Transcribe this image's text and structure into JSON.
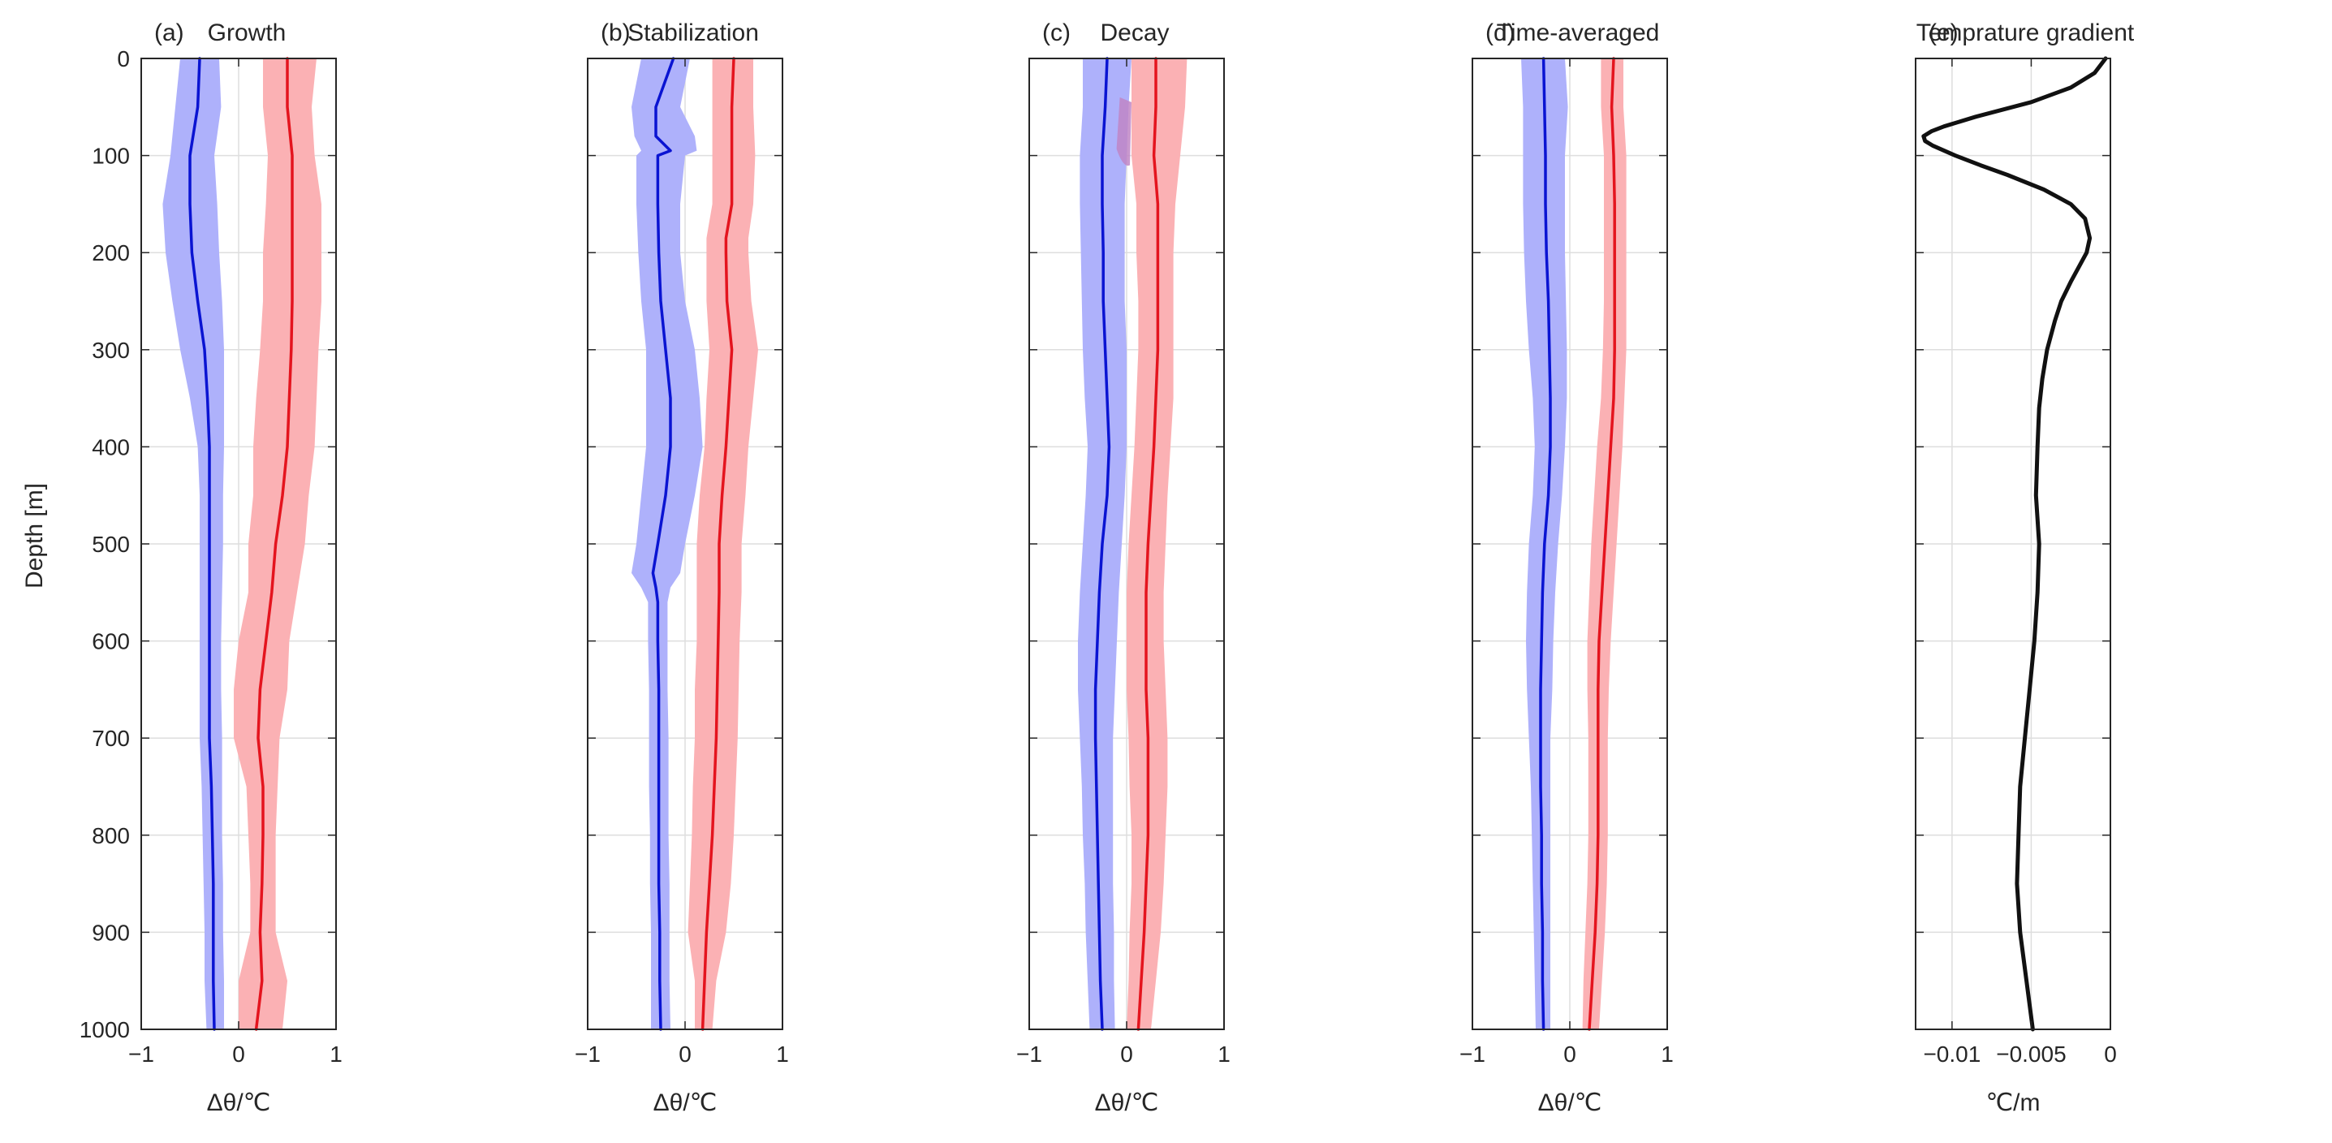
{
  "figure": {
    "shared_ylabel": "Depth [m]",
    "colors": {
      "blue_line": "#0a14d2",
      "blue_fill": "#aeb1fb",
      "red_line": "#e4141e",
      "red_fill": "#fbb1b4",
      "overlap_fill": "#bf86c6",
      "black_line": "#111111",
      "grid": "#dedede",
      "axes": "#262626"
    }
  },
  "chart_data": [
    {
      "type": "line",
      "panel": "(a)",
      "title": "Growth",
      "xlabel": "Δθ/℃",
      "ylabel": "Depth [m]",
      "xlim": [
        -1,
        1
      ],
      "ylim": [
        0,
        1000
      ],
      "y_reversed": true,
      "xticks": [
        -1,
        0,
        1
      ],
      "yticks": [
        0,
        100,
        200,
        300,
        400,
        500,
        600,
        700,
        800,
        900,
        1000
      ],
      "grid": true,
      "series": [
        {
          "name": "blue",
          "color": "blue",
          "depth": [
            0,
            50,
            100,
            150,
            200,
            250,
            300,
            350,
            400,
            450,
            500,
            550,
            600,
            650,
            700,
            750,
            800,
            850,
            900,
            950,
            1000
          ],
          "values": [
            -0.4,
            -0.42,
            -0.5,
            -0.5,
            -0.48,
            -0.42,
            -0.35,
            -0.32,
            -0.3,
            -0.3,
            -0.3,
            -0.3,
            -0.3,
            -0.3,
            -0.3,
            -0.28,
            -0.27,
            -0.26,
            -0.26,
            -0.26,
            -0.25
          ],
          "lower": [
            -0.6,
            -0.65,
            -0.7,
            -0.78,
            -0.75,
            -0.68,
            -0.6,
            -0.5,
            -0.42,
            -0.4,
            -0.4,
            -0.4,
            -0.4,
            -0.4,
            -0.4,
            -0.38,
            -0.37,
            -0.36,
            -0.35,
            -0.35,
            -0.33
          ],
          "upper": [
            -0.2,
            -0.18,
            -0.25,
            -0.22,
            -0.2,
            -0.17,
            -0.15,
            -0.15,
            -0.15,
            -0.16,
            -0.16,
            -0.17,
            -0.18,
            -0.18,
            -0.17,
            -0.17,
            -0.17,
            -0.16,
            -0.16,
            -0.15,
            -0.15
          ]
        },
        {
          "name": "red",
          "color": "red",
          "depth": [
            0,
            50,
            100,
            150,
            200,
            250,
            300,
            350,
            400,
            450,
            500,
            550,
            600,
            650,
            700,
            750,
            800,
            850,
            900,
            950,
            1000
          ],
          "values": [
            0.5,
            0.5,
            0.55,
            0.55,
            0.55,
            0.55,
            0.54,
            0.52,
            0.5,
            0.45,
            0.38,
            0.34,
            0.28,
            0.22,
            0.2,
            0.25,
            0.25,
            0.24,
            0.22,
            0.24,
            0.18
          ],
          "lower": [
            0.25,
            0.25,
            0.3,
            0.28,
            0.25,
            0.25,
            0.22,
            0.18,
            0.15,
            0.15,
            0.1,
            0.1,
            0.0,
            -0.05,
            -0.05,
            0.08,
            0.1,
            0.12,
            0.12,
            0.0,
            0.0
          ],
          "upper": [
            0.8,
            0.75,
            0.78,
            0.85,
            0.85,
            0.85,
            0.82,
            0.8,
            0.78,
            0.72,
            0.68,
            0.6,
            0.52,
            0.5,
            0.42,
            0.4,
            0.38,
            0.38,
            0.38,
            0.5,
            0.45
          ]
        }
      ]
    },
    {
      "type": "line",
      "panel": "(b)",
      "title": "Stabilization",
      "xlabel": "Δθ/℃",
      "xlim": [
        -1,
        1
      ],
      "ylim": [
        0,
        1000
      ],
      "y_reversed": true,
      "xticks": [
        -1,
        0,
        1
      ],
      "grid": true,
      "series": [
        {
          "name": "blue",
          "color": "blue",
          "depth": [
            0,
            50,
            80,
            95,
            100,
            150,
            200,
            250,
            300,
            350,
            400,
            450,
            500,
            530,
            545,
            560,
            600,
            650,
            700,
            750,
            800,
            850,
            900,
            950,
            1000
          ],
          "values": [
            -0.12,
            -0.3,
            -0.3,
            -0.15,
            -0.28,
            -0.28,
            -0.27,
            -0.25,
            -0.2,
            -0.15,
            -0.15,
            -0.2,
            -0.28,
            -0.33,
            -0.3,
            -0.28,
            -0.28,
            -0.27,
            -0.27,
            -0.27,
            -0.27,
            -0.27,
            -0.26,
            -0.26,
            -0.25
          ],
          "lower": [
            -0.45,
            -0.55,
            -0.52,
            -0.45,
            -0.5,
            -0.5,
            -0.48,
            -0.45,
            -0.4,
            -0.4,
            -0.4,
            -0.45,
            -0.5,
            -0.55,
            -0.45,
            -0.38,
            -0.38,
            -0.37,
            -0.37,
            -0.37,
            -0.36,
            -0.36,
            -0.35,
            -0.35,
            -0.35
          ],
          "upper": [
            0.05,
            -0.05,
            0.1,
            0.12,
            0.0,
            -0.05,
            -0.05,
            0.0,
            0.1,
            0.15,
            0.18,
            0.1,
            0.0,
            -0.05,
            -0.15,
            -0.18,
            -0.18,
            -0.18,
            -0.17,
            -0.17,
            -0.17,
            -0.16,
            -0.16,
            -0.16,
            -0.15
          ]
        },
        {
          "name": "red",
          "color": "red",
          "depth": [
            0,
            50,
            100,
            150,
            185,
            200,
            250,
            300,
            350,
            400,
            450,
            500,
            550,
            600,
            650,
            700,
            750,
            800,
            850,
            900,
            950,
            1000
          ],
          "values": [
            0.5,
            0.48,
            0.48,
            0.48,
            0.42,
            0.42,
            0.43,
            0.48,
            0.45,
            0.42,
            0.38,
            0.35,
            0.35,
            0.34,
            0.33,
            0.32,
            0.3,
            0.28,
            0.25,
            0.22,
            0.2,
            0.18
          ],
          "lower": [
            0.28,
            0.28,
            0.28,
            0.28,
            0.22,
            0.22,
            0.22,
            0.25,
            0.22,
            0.2,
            0.15,
            0.12,
            0.12,
            0.12,
            0.1,
            0.1,
            0.08,
            0.07,
            0.05,
            0.03,
            0.1,
            0.1
          ],
          "upper": [
            0.7,
            0.7,
            0.72,
            0.7,
            0.65,
            0.65,
            0.68,
            0.75,
            0.7,
            0.65,
            0.62,
            0.58,
            0.58,
            0.56,
            0.55,
            0.54,
            0.52,
            0.5,
            0.47,
            0.42,
            0.32,
            0.28
          ]
        }
      ]
    },
    {
      "type": "line",
      "panel": "(c)",
      "title": "Decay",
      "xlabel": "Δθ/℃",
      "xlim": [
        -1,
        1
      ],
      "ylim": [
        0,
        1000
      ],
      "y_reversed": true,
      "xticks": [
        -1,
        0,
        1
      ],
      "grid": true,
      "overlap_region": {
        "depth": [
          40,
          110
        ],
        "x": [
          -0.12,
          0.05
        ]
      },
      "series": [
        {
          "name": "blue",
          "color": "blue",
          "depth": [
            0,
            50,
            100,
            150,
            200,
            250,
            300,
            350,
            400,
            450,
            500,
            550,
            600,
            650,
            700,
            750,
            800,
            850,
            900,
            950,
            1000
          ],
          "values": [
            -0.2,
            -0.22,
            -0.25,
            -0.25,
            -0.24,
            -0.24,
            -0.22,
            -0.2,
            -0.18,
            -0.2,
            -0.25,
            -0.28,
            -0.3,
            -0.32,
            -0.32,
            -0.31,
            -0.3,
            -0.29,
            -0.28,
            -0.27,
            -0.25
          ],
          "lower": [
            -0.45,
            -0.45,
            -0.48,
            -0.48,
            -0.47,
            -0.46,
            -0.45,
            -0.43,
            -0.4,
            -0.42,
            -0.45,
            -0.48,
            -0.5,
            -0.5,
            -0.48,
            -0.46,
            -0.45,
            -0.43,
            -0.42,
            -0.4,
            -0.38
          ],
          "upper": [
            0.05,
            0.02,
            0.0,
            -0.02,
            -0.02,
            -0.02,
            0.0,
            0.0,
            0.0,
            -0.02,
            -0.05,
            -0.08,
            -0.1,
            -0.12,
            -0.14,
            -0.14,
            -0.14,
            -0.14,
            -0.13,
            -0.13,
            -0.12
          ]
        },
        {
          "name": "red",
          "color": "red",
          "depth": [
            0,
            50,
            100,
            150,
            200,
            250,
            300,
            350,
            400,
            450,
            500,
            550,
            600,
            650,
            700,
            750,
            800,
            850,
            900,
            950,
            1000
          ],
          "values": [
            0.3,
            0.3,
            0.28,
            0.32,
            0.32,
            0.32,
            0.32,
            0.3,
            0.28,
            0.25,
            0.22,
            0.2,
            0.2,
            0.2,
            0.22,
            0.22,
            0.22,
            0.2,
            0.18,
            0.15,
            0.12
          ],
          "lower": [
            0.05,
            0.05,
            0.05,
            0.1,
            0.1,
            0.12,
            0.12,
            0.1,
            0.08,
            0.05,
            0.02,
            0.0,
            0.0,
            0.0,
            0.02,
            0.03,
            0.05,
            0.05,
            0.03,
            0.02,
            0.0
          ],
          "upper": [
            0.62,
            0.6,
            0.55,
            0.5,
            0.48,
            0.48,
            0.48,
            0.48,
            0.45,
            0.42,
            0.4,
            0.38,
            0.38,
            0.4,
            0.42,
            0.42,
            0.4,
            0.38,
            0.35,
            0.3,
            0.25
          ]
        }
      ]
    },
    {
      "type": "line",
      "panel": "(d)",
      "title": "Time-averaged",
      "xlabel": "Δθ/℃",
      "xlim": [
        -1,
        1
      ],
      "ylim": [
        0,
        1000
      ],
      "y_reversed": true,
      "xticks": [
        -1,
        0,
        1
      ],
      "grid": true,
      "series": [
        {
          "name": "blue",
          "color": "blue",
          "depth": [
            0,
            50,
            100,
            150,
            200,
            250,
            300,
            350,
            400,
            450,
            500,
            550,
            600,
            650,
            700,
            750,
            800,
            850,
            900,
            950,
            1000
          ],
          "values": [
            -0.27,
            -0.26,
            -0.25,
            -0.25,
            -0.24,
            -0.22,
            -0.21,
            -0.2,
            -0.2,
            -0.22,
            -0.26,
            -0.28,
            -0.29,
            -0.3,
            -0.3,
            -0.3,
            -0.29,
            -0.29,
            -0.28,
            -0.28,
            -0.27
          ],
          "lower": [
            -0.5,
            -0.48,
            -0.48,
            -0.48,
            -0.47,
            -0.45,
            -0.42,
            -0.38,
            -0.36,
            -0.38,
            -0.42,
            -0.44,
            -0.45,
            -0.44,
            -0.42,
            -0.4,
            -0.39,
            -0.38,
            -0.37,
            -0.36,
            -0.35
          ],
          "upper": [
            -0.05,
            -0.02,
            -0.05,
            -0.05,
            -0.05,
            -0.04,
            -0.03,
            -0.03,
            -0.05,
            -0.08,
            -0.12,
            -0.15,
            -0.17,
            -0.18,
            -0.2,
            -0.2,
            -0.2,
            -0.2,
            -0.2,
            -0.2,
            -0.2
          ]
        },
        {
          "name": "red",
          "color": "red",
          "depth": [
            0,
            50,
            100,
            150,
            200,
            250,
            300,
            350,
            400,
            450,
            500,
            550,
            600,
            650,
            700,
            750,
            800,
            850,
            900,
            950,
            1000
          ],
          "values": [
            0.45,
            0.43,
            0.45,
            0.46,
            0.46,
            0.46,
            0.46,
            0.45,
            0.42,
            0.39,
            0.36,
            0.33,
            0.3,
            0.29,
            0.29,
            0.29,
            0.29,
            0.28,
            0.26,
            0.23,
            0.2
          ],
          "lower": [
            0.32,
            0.32,
            0.35,
            0.35,
            0.35,
            0.35,
            0.34,
            0.32,
            0.28,
            0.25,
            0.22,
            0.2,
            0.18,
            0.18,
            0.19,
            0.19,
            0.19,
            0.18,
            0.16,
            0.14,
            0.13
          ],
          "upper": [
            0.55,
            0.55,
            0.58,
            0.58,
            0.58,
            0.58,
            0.58,
            0.56,
            0.54,
            0.51,
            0.48,
            0.45,
            0.42,
            0.4,
            0.39,
            0.39,
            0.39,
            0.38,
            0.36,
            0.33,
            0.3
          ]
        }
      ]
    },
    {
      "type": "line",
      "panel": "(e)",
      "title": "Temprature gradient",
      "xlabel": "℃/m",
      "xlim": [
        -0.0123,
        0
      ],
      "ylim": [
        0,
        1000
      ],
      "y_reversed": true,
      "xticks": [
        -0.01,
        -0.005,
        0
      ],
      "xtick_labels": [
        "−0.01",
        "−0.005",
        "0"
      ],
      "grid": true,
      "series": [
        {
          "name": "gradient",
          "color": "black",
          "depth": [
            0,
            15,
            30,
            45,
            60,
            70,
            75,
            80,
            85,
            90,
            100,
            110,
            120,
            135,
            150,
            165,
            185,
            200,
            215,
            230,
            250,
            270,
            300,
            330,
            360,
            400,
            450,
            500,
            550,
            600,
            650,
            700,
            750,
            800,
            850,
            900,
            950,
            1000
          ],
          "values": [
            -0.0003,
            -0.001,
            -0.0025,
            -0.005,
            -0.0085,
            -0.0105,
            -0.0113,
            -0.0118,
            -0.0117,
            -0.0112,
            -0.0098,
            -0.0082,
            -0.0065,
            -0.0042,
            -0.0025,
            -0.0016,
            -0.0013,
            -0.0015,
            -0.002,
            -0.0025,
            -0.0031,
            -0.0035,
            -0.004,
            -0.0043,
            -0.0045,
            -0.0046,
            -0.0047,
            -0.0045,
            -0.0046,
            -0.0048,
            -0.0051,
            -0.0054,
            -0.0057,
            -0.0058,
            -0.0059,
            -0.0057,
            -0.0053,
            -0.0049
          ]
        }
      ]
    }
  ]
}
